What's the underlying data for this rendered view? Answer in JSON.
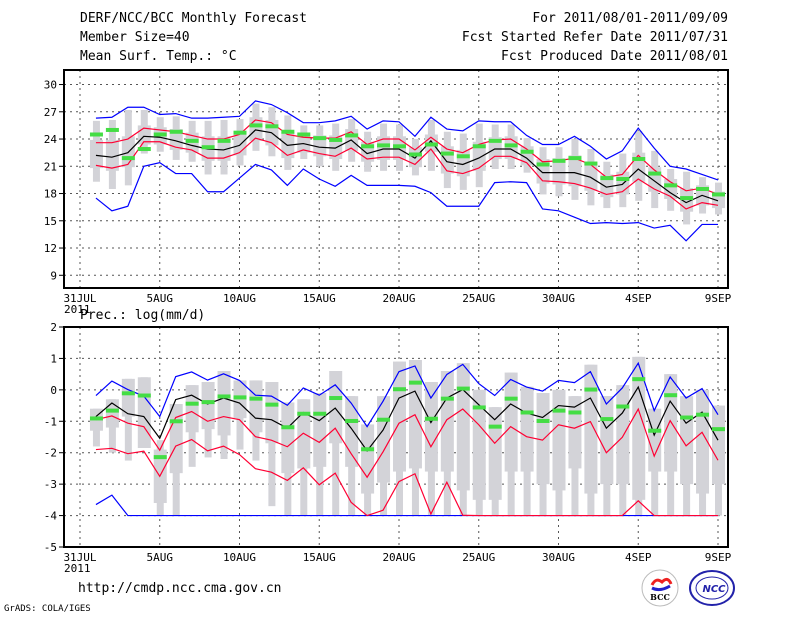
{
  "header": {
    "title": "DERF/NCC/BCC Monthly Forecast",
    "member_size": "Member Size=40",
    "variable": "Mean Surf. Temp.: °C",
    "period": "For 2011/08/01-2011/09/09",
    "start_date": "Fcst Started Refer Date 2011/07/31",
    "produced_date": "Fcst Produced Date 2011/08/01"
  },
  "footer": {
    "url": "http://cmdp.ncc.cma.gov.cn",
    "grads": "GrADS: COLA/IGES",
    "logo_bcc": "BCC",
    "logo_ncc": "NCC"
  },
  "colors": {
    "mean": "#000000",
    "spread": "#ff0033",
    "extreme": "#0000ff",
    "obs": "#44dd44",
    "box": "#d3d3d8",
    "grid": "#555555"
  },
  "chart_data": [
    {
      "type": "box-line",
      "title": "Mean Surf. Temp.: °C",
      "x_day_labels": [
        "31JUL",
        "5AUG",
        "10AUG",
        "15AUG",
        "20AUG",
        "25AUG",
        "30AUG",
        "4SEP",
        "9SEP"
      ],
      "x_year_label": "2011",
      "x_ticks_day": [
        0,
        5,
        10,
        15,
        20,
        25,
        30,
        35,
        40
      ],
      "y_ticks": [
        9,
        12,
        15,
        18,
        21,
        24,
        27,
        30
      ],
      "ylim": [
        7.6,
        31.6
      ],
      "grid": true,
      "days": 40,
      "mean": [
        22.2,
        22.0,
        22.5,
        24.3,
        24.2,
        23.8,
        23.3,
        22.9,
        22.8,
        23.3,
        25.0,
        24.7,
        23.3,
        23.5,
        23.1,
        23.0,
        23.9,
        22.4,
        22.9,
        22.9,
        21.9,
        23.8,
        21.5,
        21.2,
        21.9,
        22.9,
        22.9,
        21.9,
        20.3,
        20.3,
        20.3,
        19.8,
        18.7,
        19.0,
        20.7,
        19.4,
        18.1,
        17.0,
        17.8,
        17.2
      ],
      "upper_spread": [
        23.6,
        23.6,
        24.0,
        25.2,
        25.0,
        24.8,
        24.4,
        24.0,
        24.0,
        24.5,
        26.1,
        25.8,
        24.5,
        24.2,
        24.1,
        24.1,
        24.8,
        23.4,
        24.0,
        24.0,
        22.8,
        24.2,
        22.9,
        22.5,
        23.4,
        23.9,
        24.0,
        22.9,
        21.5,
        21.6,
        21.9,
        21.2,
        19.8,
        20.1,
        22.2,
        20.6,
        19.3,
        18.3,
        18.6,
        17.9
      ],
      "lower_spread": [
        21.1,
        20.8,
        21.2,
        23.7,
        23.7,
        23.1,
        22.8,
        21.9,
        21.9,
        22.5,
        24.1,
        23.6,
        22.2,
        22.8,
        22.4,
        22.1,
        23.0,
        21.8,
        22.0,
        22.0,
        21.2,
        22.9,
        20.5,
        20.2,
        20.8,
        22.1,
        22.1,
        21.4,
        19.4,
        19.3,
        19.1,
        18.6,
        17.9,
        18.2,
        19.6,
        18.5,
        17.7,
        16.3,
        17.0,
        16.7
      ],
      "max": [
        26.3,
        26.4,
        27.5,
        27.5,
        26.7,
        26.8,
        26.3,
        26.3,
        26.4,
        26.5,
        28.2,
        27.8,
        26.9,
        25.8,
        25.8,
        26.0,
        26.5,
        25.1,
        26.0,
        25.9,
        24.3,
        26.4,
        25.1,
        24.9,
        26.0,
        25.9,
        25.9,
        24.4,
        23.4,
        23.4,
        24.3,
        23.2,
        21.8,
        22.7,
        25.2,
        23.0,
        21.0,
        20.7,
        20.1,
        19.5
      ],
      "min": [
        17.5,
        16.1,
        16.6,
        21.0,
        21.4,
        20.2,
        20.2,
        18.2,
        18.2,
        19.7,
        21.2,
        20.6,
        18.9,
        20.7,
        19.6,
        18.8,
        20.0,
        18.9,
        18.9,
        18.9,
        18.8,
        18.1,
        16.6,
        16.6,
        16.6,
        19.2,
        19.3,
        19.2,
        16.3,
        16.1,
        15.4,
        14.7,
        14.8,
        14.7,
        14.8,
        14.2,
        14.5,
        12.8,
        14.6,
        14.6
      ],
      "observed": [
        24.5,
        25.0,
        21.9,
        22.9,
        24.5,
        24.8,
        23.8,
        23.1,
        23.8,
        24.7,
        25.5,
        25.4,
        24.8,
        24.5,
        24.1,
        23.9,
        24.4,
        23.2,
        23.3,
        23.2,
        22.3,
        23.4,
        22.4,
        22.1,
        23.2,
        23.8,
        23.3,
        22.6,
        21.2,
        21.6,
        21.9,
        21.3,
        19.7,
        19.6,
        21.8,
        20.2,
        18.9,
        17.5,
        18.5,
        17.9
      ],
      "whisker_low": [
        19.3,
        18.5,
        18.9,
        22.4,
        22.6,
        21.7,
        21.5,
        20.1,
        20.1,
        21.1,
        22.7,
        22.1,
        20.6,
        21.8,
        21.0,
        20.5,
        21.5,
        20.4,
        20.5,
        20.5,
        20.0,
        20.5,
        18.6,
        18.4,
        18.7,
        20.7,
        20.7,
        20.3,
        17.9,
        17.7,
        17.3,
        16.7,
        16.4,
        16.5,
        17.2,
        16.4,
        16.1,
        14.6,
        15.8,
        15.7
      ],
      "whisker_high": [
        26.0,
        26.1,
        27.2,
        27.2,
        26.4,
        26.5,
        26.0,
        26.0,
        26.1,
        26.2,
        27.9,
        27.5,
        26.6,
        25.5,
        25.5,
        25.7,
        26.2,
        24.8,
        25.7,
        25.6,
        24.0,
        26.1,
        24.8,
        24.6,
        25.7,
        25.6,
        25.6,
        24.1,
        23.1,
        23.1,
        24.0,
        22.9,
        21.5,
        22.4,
        24.9,
        22.7,
        20.7,
        20.4,
        19.8,
        19.2
      ],
      "box_low": [
        20.8,
        20.5,
        20.9,
        23.4,
        23.4,
        22.8,
        22.5,
        21.6,
        21.6,
        22.2,
        23.8,
        23.3,
        21.9,
        22.5,
        22.1,
        21.8,
        22.7,
        21.5,
        21.7,
        21.7,
        20.9,
        22.6,
        20.2,
        19.9,
        20.5,
        21.8,
        21.8,
        21.1,
        19.1,
        19.0,
        18.8,
        18.3,
        17.6,
        17.9,
        19.3,
        18.2,
        17.4,
        16.0,
        16.7,
        16.4
      ],
      "box_high": [
        23.9,
        23.9,
        24.3,
        25.5,
        25.3,
        25.1,
        24.7,
        24.3,
        24.3,
        24.8,
        26.4,
        26.1,
        24.8,
        24.5,
        24.4,
        24.4,
        25.1,
        23.7,
        24.3,
        24.3,
        23.1,
        24.5,
        23.2,
        22.8,
        23.7,
        24.2,
        24.3,
        23.2,
        21.8,
        21.9,
        22.2,
        21.5,
        20.1,
        20.4,
        22.5,
        20.9,
        19.6,
        18.6,
        18.9,
        18.2
      ]
    },
    {
      "type": "box-line",
      "title": "Prec.: log(mm/d)",
      "x_day_labels": [
        "31JUL",
        "5AUG",
        "10AUG",
        "15AUG",
        "20AUG",
        "25AUG",
        "30AUG",
        "4SEP",
        "9SEP"
      ],
      "x_year_label": "2011",
      "x_ticks_day": [
        0,
        5,
        10,
        15,
        20,
        25,
        30,
        35,
        40
      ],
      "y_ticks": [
        -5,
        -4,
        -3,
        -2,
        -1,
        0,
        1,
        2
      ],
      "ylim": [
        -5,
        2
      ],
      "grid": true,
      "days": 40,
      "mean": [
        -0.85,
        -0.42,
        -0.76,
        -0.85,
        -1.54,
        -0.31,
        -0.17,
        -0.45,
        -0.26,
        -0.42,
        -0.9,
        -0.95,
        -1.22,
        -0.72,
        -0.98,
        -0.58,
        -1.22,
        -1.94,
        -1.28,
        -0.26,
        -0.04,
        -1.04,
        -0.26,
        0.01,
        -0.47,
        -0.95,
        -0.45,
        -0.74,
        -0.88,
        -0.5,
        -0.55,
        -0.26,
        -1.22,
        -0.74,
        0.09,
        -1.44,
        -0.36,
        -1.06,
        -0.71,
        -1.6
      ],
      "upper_spread": [
        -0.95,
        -0.83,
        -1.06,
        -1.17,
        -1.92,
        -0.88,
        -0.69,
        -1.0,
        -0.85,
        -0.95,
        -1.49,
        -1.6,
        -1.81,
        -1.38,
        -1.67,
        -1.22,
        -2.03,
        -2.78,
        -1.97,
        -1.06,
        -0.79,
        -1.81,
        -0.95,
        -0.61,
        -1.11,
        -1.7,
        -1.17,
        -1.49,
        -1.6,
        -1.11,
        -1.22,
        -1.01,
        -2.0,
        -1.51,
        -0.61,
        -2.11,
        -0.98,
        -1.78,
        -1.35,
        -2.24
      ],
      "lower_spread": [
        -1.9,
        -1.86,
        -2.03,
        -1.95,
        -2.75,
        -1.79,
        -1.58,
        -1.94,
        -1.79,
        -2.06,
        -2.51,
        -2.62,
        -2.88,
        -2.48,
        -3.02,
        -2.65,
        -3.58,
        -4.0,
        -3.83,
        -2.92,
        -2.67,
        -3.95,
        -2.94,
        -3.99,
        -4,
        -4,
        -4,
        -4,
        -4,
        -4,
        -4,
        -4,
        -4,
        -4,
        -3.53,
        -4,
        -4,
        -4,
        -4,
        -4
      ],
      "max": [
        -0.18,
        0.28,
        0.01,
        -0.2,
        -0.85,
        0.42,
        0.57,
        0.31,
        0.51,
        0.3,
        -0.17,
        -0.2,
        -0.49,
        0.06,
        -0.17,
        0.16,
        -0.42,
        -1.17,
        -0.36,
        0.58,
        0.76,
        -0.26,
        0.49,
        0.81,
        0.2,
        -0.18,
        0.33,
        0.09,
        -0.04,
        0.3,
        0.23,
        0.58,
        -0.45,
        0.06,
        0.85,
        -0.66,
        0.41,
        -0.26,
        0.04,
        -0.79
      ],
      "min": [
        -3.65,
        -3.35,
        -4,
        -4,
        -4,
        -4,
        -4,
        -4,
        -4,
        -4,
        -4,
        -4,
        -4,
        -4,
        -4,
        -4,
        -4,
        -4,
        -4,
        -4,
        -4,
        -4,
        -4,
        -4,
        -4,
        -4,
        -4,
        -4,
        -4,
        -4,
        -4,
        -4,
        -4,
        -4,
        -4,
        -4,
        -4,
        -4,
        -4,
        -4
      ],
      "observed": [
        -0.91,
        -0.66,
        -0.11,
        -0.18,
        -2.14,
        -1.0,
        -0.44,
        -0.39,
        -0.21,
        -0.24,
        -0.28,
        -0.47,
        -1.19,
        -0.76,
        -0.76,
        -0.26,
        -0.99,
        -1.89,
        -0.95,
        0.02,
        0.23,
        -0.92,
        -0.28,
        0.04,
        -0.56,
        -1.17,
        -0.28,
        -0.72,
        -0.99,
        -0.66,
        -0.72,
        0.01,
        -0.93,
        -0.53,
        0.34,
        -1.3,
        -0.17,
        -0.88,
        -0.79,
        -1.25
      ],
      "whisker_low": [
        -1.8,
        -2.0,
        -2.25,
        -1.85,
        -4,
        -4,
        -2.45,
        -2.15,
        -2.2,
        -1.9,
        -2.25,
        -3.7,
        -4,
        -4,
        -4,
        -4,
        -4,
        -4,
        -4,
        -4,
        -4,
        -4,
        -4,
        -4,
        -4,
        -4,
        -4,
        -4,
        -4,
        -4,
        -4,
        -4,
        -4,
        -4,
        -4,
        -4,
        -4,
        -4,
        -4,
        -4
      ],
      "whisker_high": [
        -0.6,
        -0.3,
        0.35,
        0.4,
        -1.6,
        -0.45,
        0.15,
        0.25,
        0.6,
        0.3,
        0.3,
        0.25,
        -0.4,
        -0.3,
        -0.1,
        0.6,
        -0.2,
        -1.1,
        -0.2,
        0.9,
        0.95,
        0.25,
        0.6,
        0.85,
        0.0,
        -0.55,
        0.55,
        0.1,
        -0.1,
        0.0,
        -0.2,
        0.8,
        -0.2,
        0.15,
        1.05,
        -0.6,
        0.5,
        -0.2,
        0.0,
        -0.5
      ],
      "box_low": [
        -1.3,
        -1.2,
        -0.85,
        -1.85,
        -3.6,
        -2.65,
        -1.35,
        -1.25,
        -1.45,
        -0.9,
        -1.35,
        -1.7,
        -2.65,
        -2.5,
        -2.45,
        -1.7,
        -2.45,
        -3.3,
        -2.95,
        -2.6,
        -2.5,
        -2.6,
        -2.6,
        -3.2,
        -3.5,
        -3.5,
        -2.6,
        -2.6,
        -3.0,
        -3.2,
        -2.5,
        -3.3,
        -3.0,
        -3.0,
        -3.5,
        -2.6,
        -2.6,
        -3.0,
        -3.3,
        -3.0
      ],
      "box_high": [
        -0.6,
        -0.3,
        0.35,
        0.4,
        -1.9,
        -0.45,
        0.15,
        0.25,
        0.6,
        0.3,
        0.3,
        0.25,
        -0.4,
        -0.3,
        -0.1,
        0.6,
        -0.2,
        -1.1,
        -0.2,
        0.9,
        0.95,
        0.25,
        0.6,
        0.85,
        0.0,
        -0.55,
        0.55,
        0.1,
        -0.1,
        0.0,
        -0.2,
        0.8,
        -0.2,
        0.15,
        1.05,
        -0.6,
        0.5,
        -0.2,
        0.0,
        -0.5
      ]
    }
  ]
}
